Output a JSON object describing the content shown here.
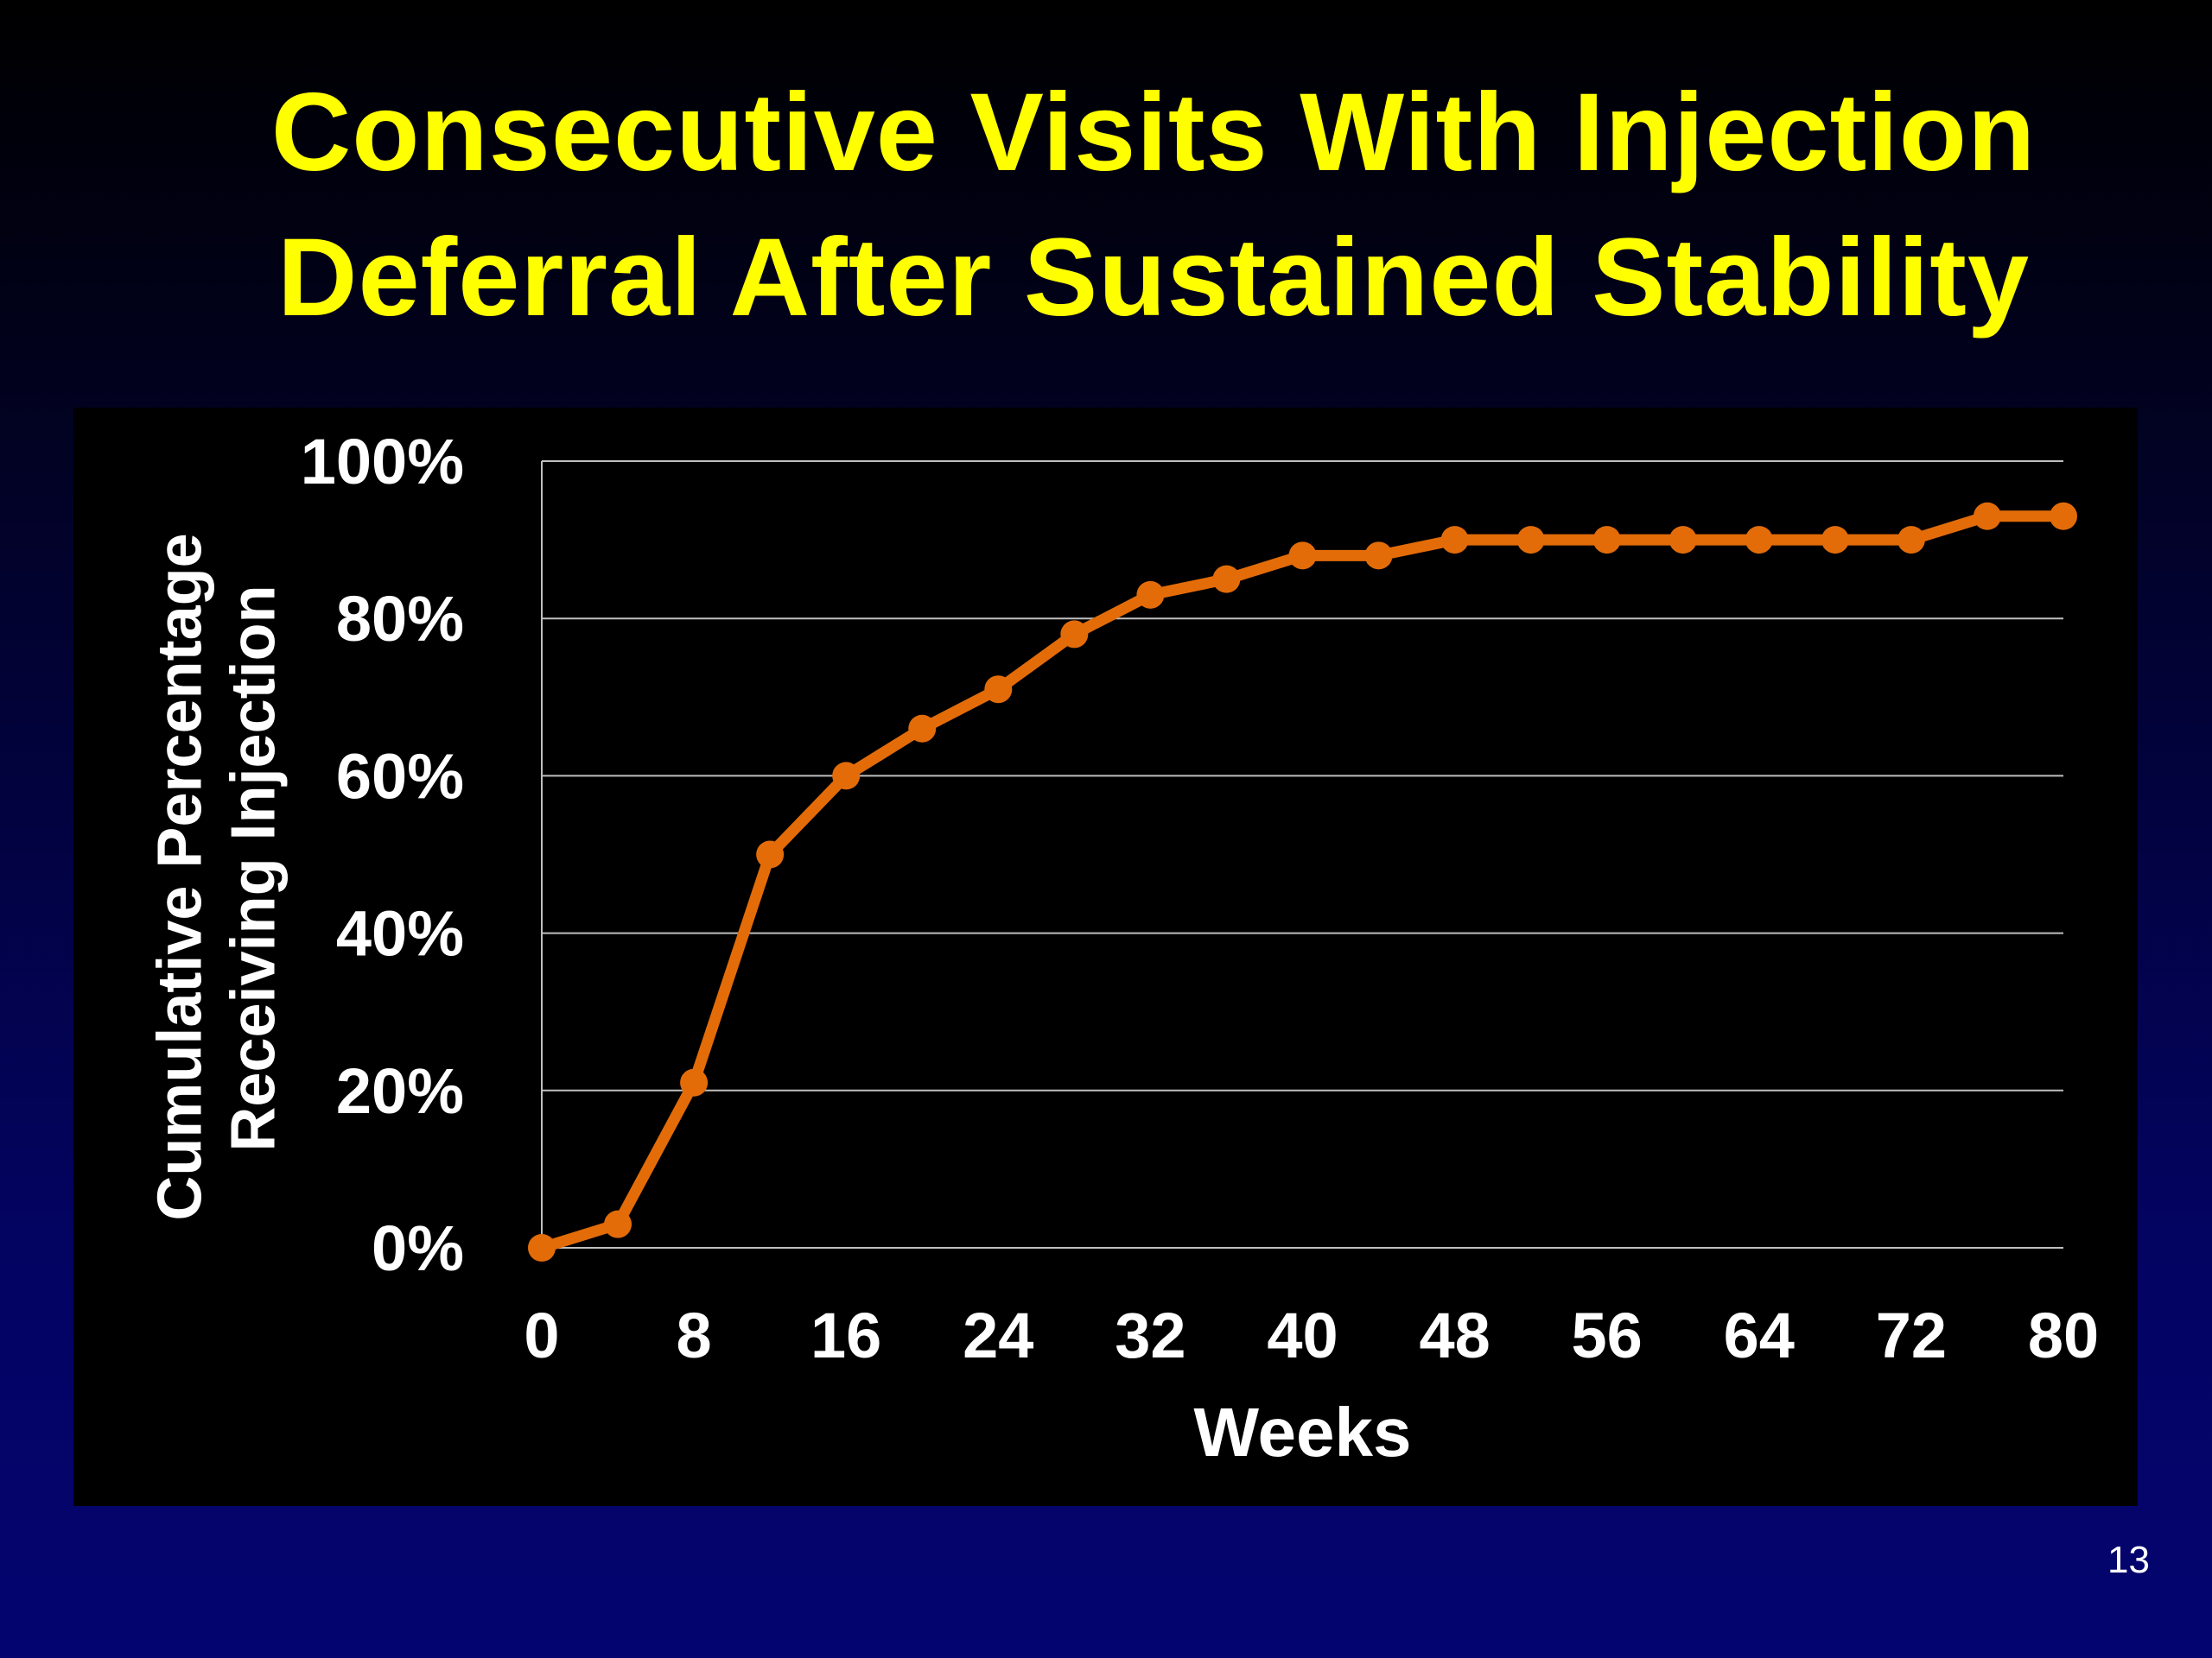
{
  "slide": {
    "title_line1": "Consecutive Visits With Injection",
    "title_line2": "Deferral After Sustained Stability",
    "page_number": "13"
  },
  "colors": {
    "title": "#ffff00",
    "series": "#e36c09",
    "axis_text": "#ffffff",
    "grid": "#bfbfbf",
    "plot_background": "#000000"
  },
  "chart_data": {
    "type": "line",
    "title": "",
    "xlabel": "Weeks",
    "ylabel_lines": [
      "Cumulative Percentage",
      "Receiving Injection"
    ],
    "xlim": [
      0,
      80
    ],
    "ylim": [
      0,
      100
    ],
    "xticks": [
      "0",
      "8",
      "16",
      "24",
      "32",
      "40",
      "48",
      "56",
      "64",
      "72",
      "80"
    ],
    "yticks": [
      "0%",
      "20%",
      "40%",
      "60%",
      "80%",
      "100%"
    ],
    "grid": true,
    "legend": "none",
    "series": [
      {
        "x": [
          0,
          4,
          8,
          12,
          16,
          20,
          24,
          28,
          32,
          36,
          40,
          44,
          48,
          52,
          56,
          60,
          64,
          68,
          72,
          76,
          80
        ],
        "values": [
          0,
          3,
          21,
          50,
          60,
          66,
          71,
          78,
          83,
          85,
          88,
          88,
          90,
          90,
          90,
          90,
          90,
          90,
          90,
          93,
          93
        ]
      }
    ]
  }
}
